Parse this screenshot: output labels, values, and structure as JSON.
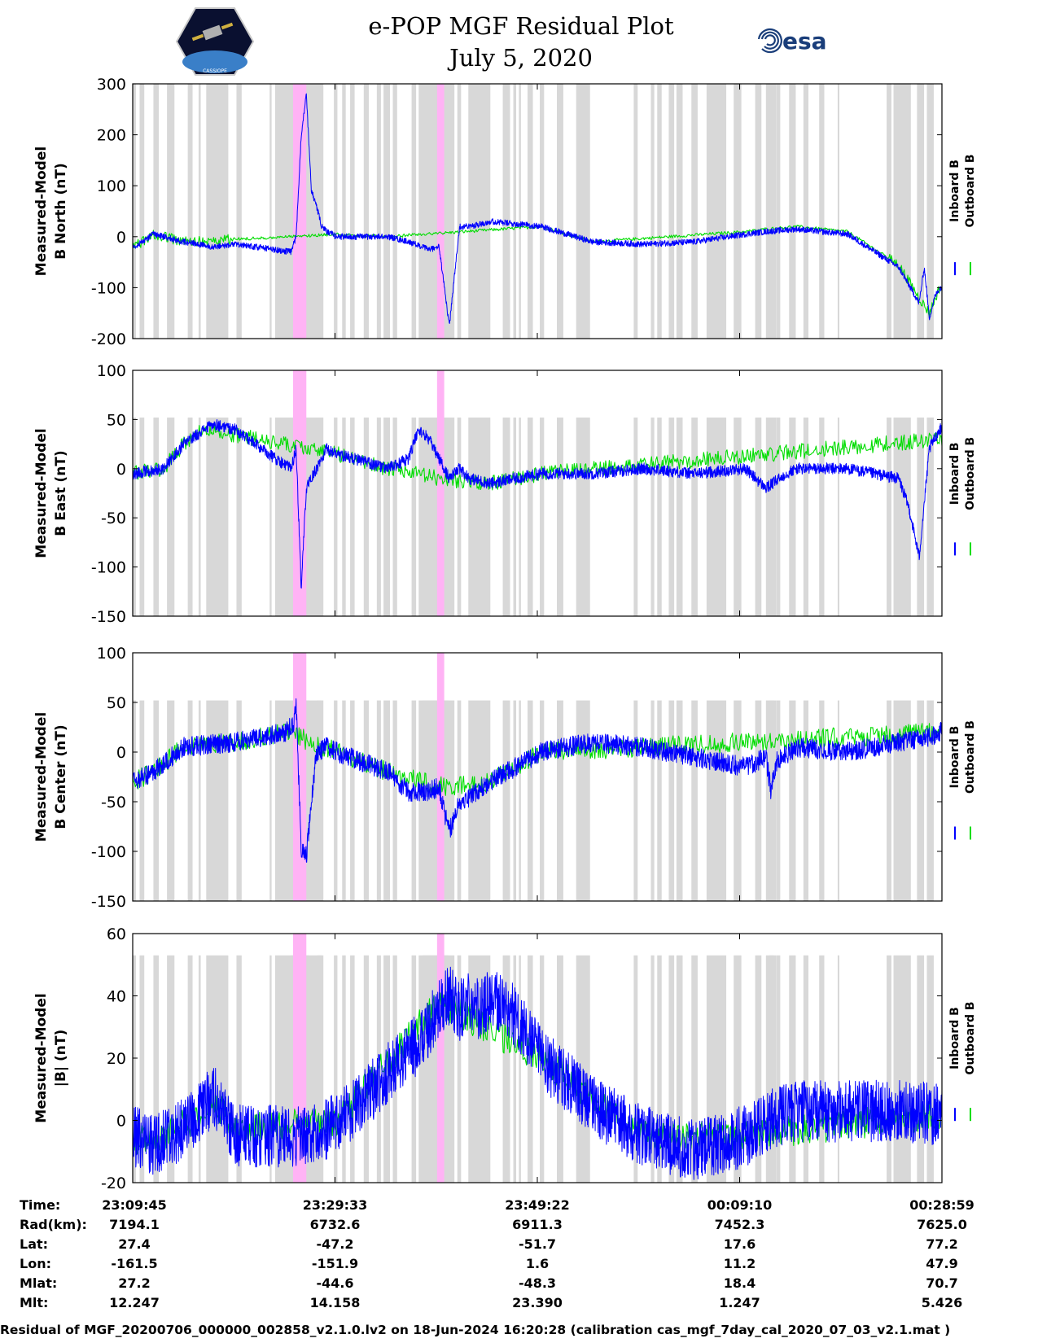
{
  "header": {
    "title_line1": "e-POP MGF Residual Plot",
    "title_line2": "July 5, 2020",
    "left_logo_text": "CASSIOPE",
    "right_logo_text": "esa"
  },
  "colors": {
    "inboard": "#0000ff",
    "outboard": "#00dd00",
    "gray_band": "#d8d8d8",
    "pink_band": "#ffb3f5"
  },
  "chart_data": [
    {
      "type": "line",
      "panel": "B North",
      "ylabel_line1": "Measured-Model",
      "ylabel_line2": "B North (nT)",
      "ylim": [
        -200,
        300
      ],
      "yticks": [
        300,
        200,
        100,
        0,
        -100,
        -200
      ],
      "legend": [
        "Inboard B",
        "Outboard B"
      ],
      "series": [
        {
          "name": "Inboard B",
          "x": [
            0,
            0.5,
            1,
            2,
            5,
            8,
            10,
            12,
            15.5,
            16,
            16.5,
            17,
            17.5,
            18,
            18.5,
            19,
            20,
            25,
            27,
            29,
            30,
            31,
            32,
            33,
            35,
            40,
            45,
            50,
            55,
            60,
            62,
            65,
            70,
            75,
            77,
            77.5,
            78,
            78.5,
            79
          ],
          "y": [
            -20,
            -15,
            -10,
            5,
            -10,
            -20,
            -15,
            -20,
            -30,
            0,
            200,
            280,
            90,
            60,
            20,
            10,
            0,
            0,
            -10,
            -25,
            -20,
            -175,
            20,
            20,
            30,
            20,
            -10,
            -15,
            -10,
            5,
            10,
            15,
            5,
            -60,
            -130,
            -60,
            -160,
            -120,
            -100
          ],
          "amp": 6
        },
        {
          "name": "Outboard B",
          "x": [
            0,
            0.5,
            1,
            2,
            5,
            20,
            25,
            40,
            45,
            60,
            62,
            65,
            70,
            75,
            77,
            78,
            79
          ],
          "y": [
            -20,
            -15,
            -10,
            5,
            -10,
            5,
            0,
            20,
            -10,
            10,
            15,
            20,
            10,
            -55,
            -120,
            -150,
            -100
          ],
          "amp": 10
        }
      ]
    },
    {
      "type": "line",
      "panel": "B East",
      "ylabel_line1": "Measured-Model",
      "ylabel_line2": "B East (nT)",
      "ylim": [
        -150,
        100
      ],
      "yticks": [
        100,
        50,
        0,
        -50,
        -100,
        -150
      ],
      "legend": [
        "Inboard B",
        "Outboard B"
      ],
      "series": [
        {
          "name": "Inboard B",
          "x": [
            0,
            3,
            5,
            7,
            8,
            10,
            12,
            14,
            15.5,
            16,
            16.5,
            17,
            18,
            19,
            20,
            25,
            27,
            28,
            29,
            30,
            31,
            32,
            33,
            35,
            40,
            45,
            50,
            55,
            60,
            62,
            64,
            65,
            70,
            75,
            76,
            77,
            78,
            79
          ],
          "y": [
            -5,
            0,
            25,
            40,
            45,
            40,
            25,
            10,
            0,
            20,
            -120,
            -20,
            0,
            20,
            15,
            0,
            10,
            40,
            30,
            10,
            -10,
            0,
            -10,
            -15,
            -5,
            -5,
            0,
            -5,
            0,
            -20,
            -5,
            0,
            0,
            -10,
            -40,
            -90,
            20,
            40
          ],
          "amp": 6
        },
        {
          "name": "Outboard B",
          "x": [
            0,
            3,
            5,
            7,
            20,
            25,
            30,
            35,
            40,
            79
          ],
          "y": [
            -5,
            0,
            25,
            40,
            15,
            0,
            -10,
            -15,
            -5,
            30
          ],
          "amp": 8
        }
      ]
    },
    {
      "type": "line",
      "panel": "B Center",
      "ylabel_line1": "Measured-Model",
      "ylabel_line2": "B Center (nT)",
      "ylim": [
        -150,
        100
      ],
      "yticks": [
        100,
        50,
        0,
        -50,
        -100,
        -150
      ],
      "legend": [
        "Inboard B",
        "Outboard B"
      ],
      "series": [
        {
          "name": "Inboard B",
          "x": [
            0,
            2,
            5,
            10,
            15,
            15.8,
            16,
            16.5,
            17,
            17.5,
            18,
            19,
            20,
            25,
            27,
            29,
            30,
            30.5,
            31,
            32,
            33,
            35,
            40,
            45,
            50,
            55,
            60,
            62,
            62.5,
            63,
            65,
            70,
            75,
            78,
            79
          ],
          "y": [
            -30,
            -20,
            5,
            10,
            20,
            30,
            50,
            -100,
            -105,
            -50,
            0,
            5,
            0,
            -20,
            -40,
            -40,
            -35,
            -60,
            -80,
            -50,
            -45,
            -30,
            0,
            10,
            5,
            -5,
            -15,
            -5,
            -40,
            -10,
            5,
            0,
            10,
            15,
            20
          ],
          "amp": 10
        },
        {
          "name": "Outboard B",
          "x": [
            0,
            2,
            5,
            10,
            15,
            20,
            25,
            30,
            35,
            40,
            79
          ],
          "y": [
            -30,
            -20,
            5,
            10,
            20,
            0,
            -20,
            -35,
            -30,
            0,
            20
          ],
          "amp": 10
        }
      ]
    },
    {
      "type": "line",
      "panel": "|B|",
      "ylabel_line1": "Measured-Model",
      "ylabel_line2": "|B| (nT)",
      "ylim": [
        -20,
        60
      ],
      "yticks": [
        60,
        40,
        20,
        0,
        -20
      ],
      "legend": [
        "Inboard B",
        "Outboard B"
      ],
      "series": [
        {
          "name": "Inboard B",
          "x": [
            0,
            2,
            4,
            6,
            7,
            8,
            9,
            10,
            12,
            15,
            18,
            20,
            22,
            25,
            28,
            30,
            31,
            32,
            33,
            34,
            35,
            37,
            40,
            45,
            50,
            55,
            60,
            62,
            65,
            70,
            75,
            79
          ],
          "y": [
            -5,
            -8,
            -5,
            0,
            5,
            8,
            2,
            -5,
            -5,
            -5,
            -5,
            0,
            5,
            15,
            25,
            35,
            40,
            35,
            40,
            35,
            40,
            35,
            20,
            5,
            -5,
            -10,
            -5,
            0,
            3,
            3,
            3,
            2
          ],
          "amp": 10
        },
        {
          "name": "Outboard B",
          "x": [
            0,
            2,
            4,
            6,
            8,
            10,
            20,
            30,
            40,
            50,
            60,
            79
          ],
          "y": [
            -5,
            -8,
            -3,
            0,
            6,
            -3,
            0,
            38,
            20,
            -5,
            -5,
            2
          ],
          "amp": 5
        }
      ]
    }
  ],
  "time_axis": {
    "labels": [
      "Time:",
      "Rad(km):",
      "Lat:",
      "Lon:",
      "Mlat:",
      "Mlt:"
    ],
    "columns": [
      {
        "Time": "23:09:45",
        "Rad": "7194.1",
        "Lat": "27.4",
        "Lon": "-161.5",
        "Mlat": "27.2",
        "Mlt": "12.247"
      },
      {
        "Time": "23:29:33",
        "Rad": "6732.6",
        "Lat": "-47.2",
        "Lon": "-151.9",
        "Mlat": "-44.6",
        "Mlt": "14.158"
      },
      {
        "Time": "23:49:22",
        "Rad": "6911.3",
        "Lat": "-51.7",
        "Lon": "1.6",
        "Mlat": "-48.3",
        "Mlt": "23.390"
      },
      {
        "Time": "00:09:10",
        "Rad": "7452.3",
        "Lat": "17.6",
        "Lon": "11.2",
        "Mlat": "18.4",
        "Mlt": "1.247"
      },
      {
        "Time": "00:28:59",
        "Rad": "7625.0",
        "Lat": "77.2",
        "Lon": "47.9",
        "Mlat": "70.7",
        "Mlt": "5.426"
      }
    ],
    "x_minutes_range": [
      0,
      79.23
    ]
  },
  "footer": {
    "text": "Residual of MGF_20200706_000000_002858_v2.1.0.lv2 on 18-Jun-2024 16:20:28 (calibration cas_mgf_7day_cal_2020_07_03_v2.1.mat )"
  }
}
